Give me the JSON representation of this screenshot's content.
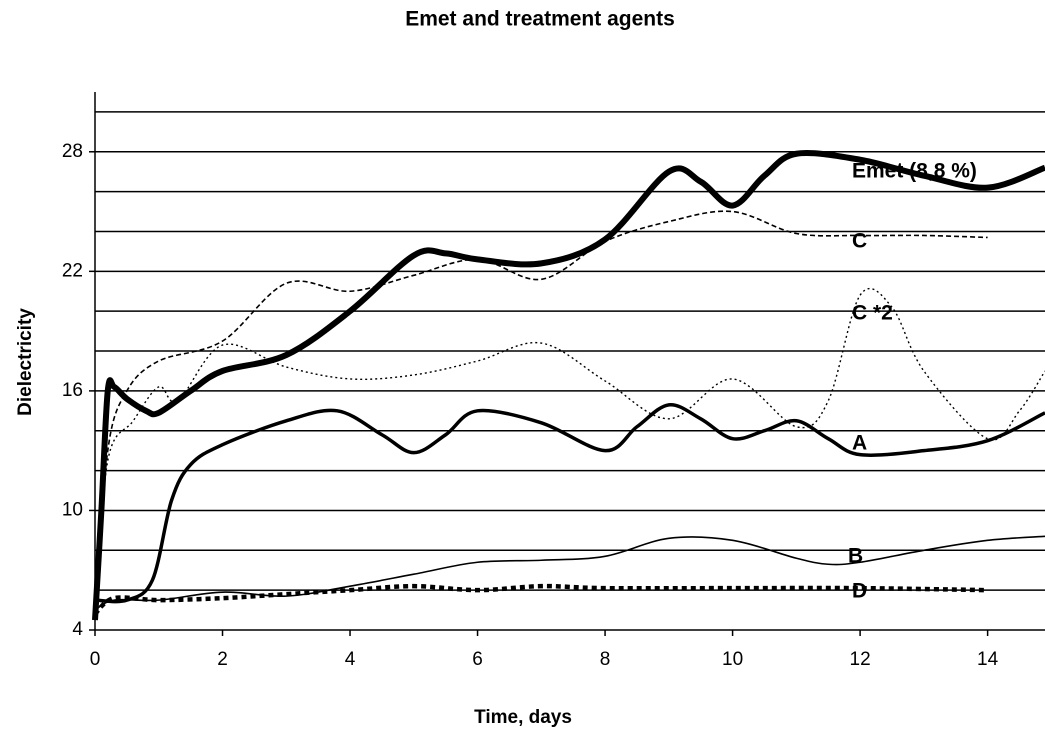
{
  "chart_data": {
    "type": "line",
    "title": "Emet and treatment agents",
    "x_label": "Time, days",
    "y_label": "Dielectricity",
    "xlim": [
      0,
      14.9
    ],
    "ylim": [
      4,
      31
    ],
    "xticks": [
      0,
      2,
      4,
      6,
      8,
      10,
      12,
      14
    ],
    "yticks": [
      4,
      10,
      16,
      22,
      28
    ],
    "ygrid": [
      6,
      8,
      10,
      12,
      14,
      16,
      18,
      20,
      22,
      24,
      26,
      28,
      30
    ],
    "series": [
      {
        "name": "Emet (8,8 %)",
        "color": "#000000",
        "line_style": "heavy",
        "x": [
          0,
          0.1,
          0.2,
          0.3,
          0.5,
          0.8,
          1,
          1.5,
          2,
          3,
          4,
          5,
          5.5,
          6,
          7,
          8,
          9,
          9.5,
          10,
          10.5,
          11,
          12,
          13,
          14,
          14.9
        ],
        "values": [
          4.5,
          10,
          16,
          16.2,
          15.6,
          15,
          14.9,
          16,
          17,
          17.8,
          20,
          22.8,
          22.9,
          22.6,
          22.4,
          23.6,
          27,
          26.5,
          25.3,
          26.8,
          27.9,
          27.6,
          26.8,
          26.2,
          27.2
        ]
      },
      {
        "name": "C",
        "color": "#000000",
        "line_style": "dashed",
        "x": [
          0,
          0.2,
          0.5,
          1,
          2,
          3,
          4,
          5,
          6,
          7,
          8,
          9,
          10,
          11,
          12,
          13,
          14
        ],
        "values": [
          4.5,
          13,
          16,
          17.5,
          18.5,
          21.4,
          21,
          21.8,
          22.6,
          21.6,
          23.5,
          24.5,
          25,
          23.9,
          23.8,
          23.8,
          23.7
        ]
      },
      {
        "name": "C *2",
        "color": "#000000",
        "line_style": "dotted",
        "x": [
          0,
          0.2,
          0.6,
          1,
          1.3,
          2,
          3,
          4,
          5,
          6,
          7,
          8,
          9,
          10,
          11,
          11.5,
          12,
          12.5,
          13,
          14,
          14.5,
          14.9
        ],
        "values": [
          4.5,
          12.5,
          14.5,
          16.2,
          15.5,
          18.3,
          17.2,
          16.6,
          16.8,
          17.5,
          18.4,
          16.5,
          14.6,
          16.6,
          14.2,
          15.5,
          20.8,
          20.2,
          17,
          13.6,
          15,
          17
        ]
      },
      {
        "name": "A",
        "color": "#000000",
        "line_style": "bold",
        "x": [
          0,
          0.5,
          0.9,
          1.2,
          1.5,
          2,
          3,
          3.8,
          4.5,
          5,
          5.5,
          6,
          7,
          8,
          8.5,
          9,
          9.5,
          10,
          10.5,
          11,
          11.5,
          12,
          13,
          14,
          14.9
        ],
        "values": [
          5.5,
          5.5,
          6.5,
          10.5,
          12.3,
          13.3,
          14.5,
          15,
          13.8,
          12.9,
          13.8,
          15,
          14.4,
          13,
          14.2,
          15.3,
          14.6,
          13.6,
          14,
          14.5,
          13.6,
          12.8,
          13,
          13.5,
          14.9
        ]
      },
      {
        "name": "B",
        "color": "#000000",
        "line_style": "solid",
        "x": [
          0,
          0.3,
          1,
          2,
          3,
          4,
          5,
          6,
          7,
          8,
          9,
          10,
          11,
          11.5,
          12,
          13,
          14,
          14.9
        ],
        "values": [
          5,
          5.5,
          5.5,
          5.9,
          5.7,
          6.2,
          6.8,
          7.4,
          7.5,
          7.7,
          8.6,
          8.5,
          7.6,
          7.3,
          7.4,
          8,
          8.5,
          8.7
        ]
      },
      {
        "name": "D",
        "color": "#000000",
        "line_style": "bold-dotted",
        "x": [
          0,
          0.3,
          1,
          2,
          3,
          4,
          5,
          6,
          7,
          8,
          10,
          12,
          14
        ],
        "values": [
          4.8,
          5.6,
          5.5,
          5.6,
          5.8,
          6,
          6.2,
          6,
          6.2,
          6.1,
          6.1,
          6.1,
          6
        ]
      }
    ]
  }
}
